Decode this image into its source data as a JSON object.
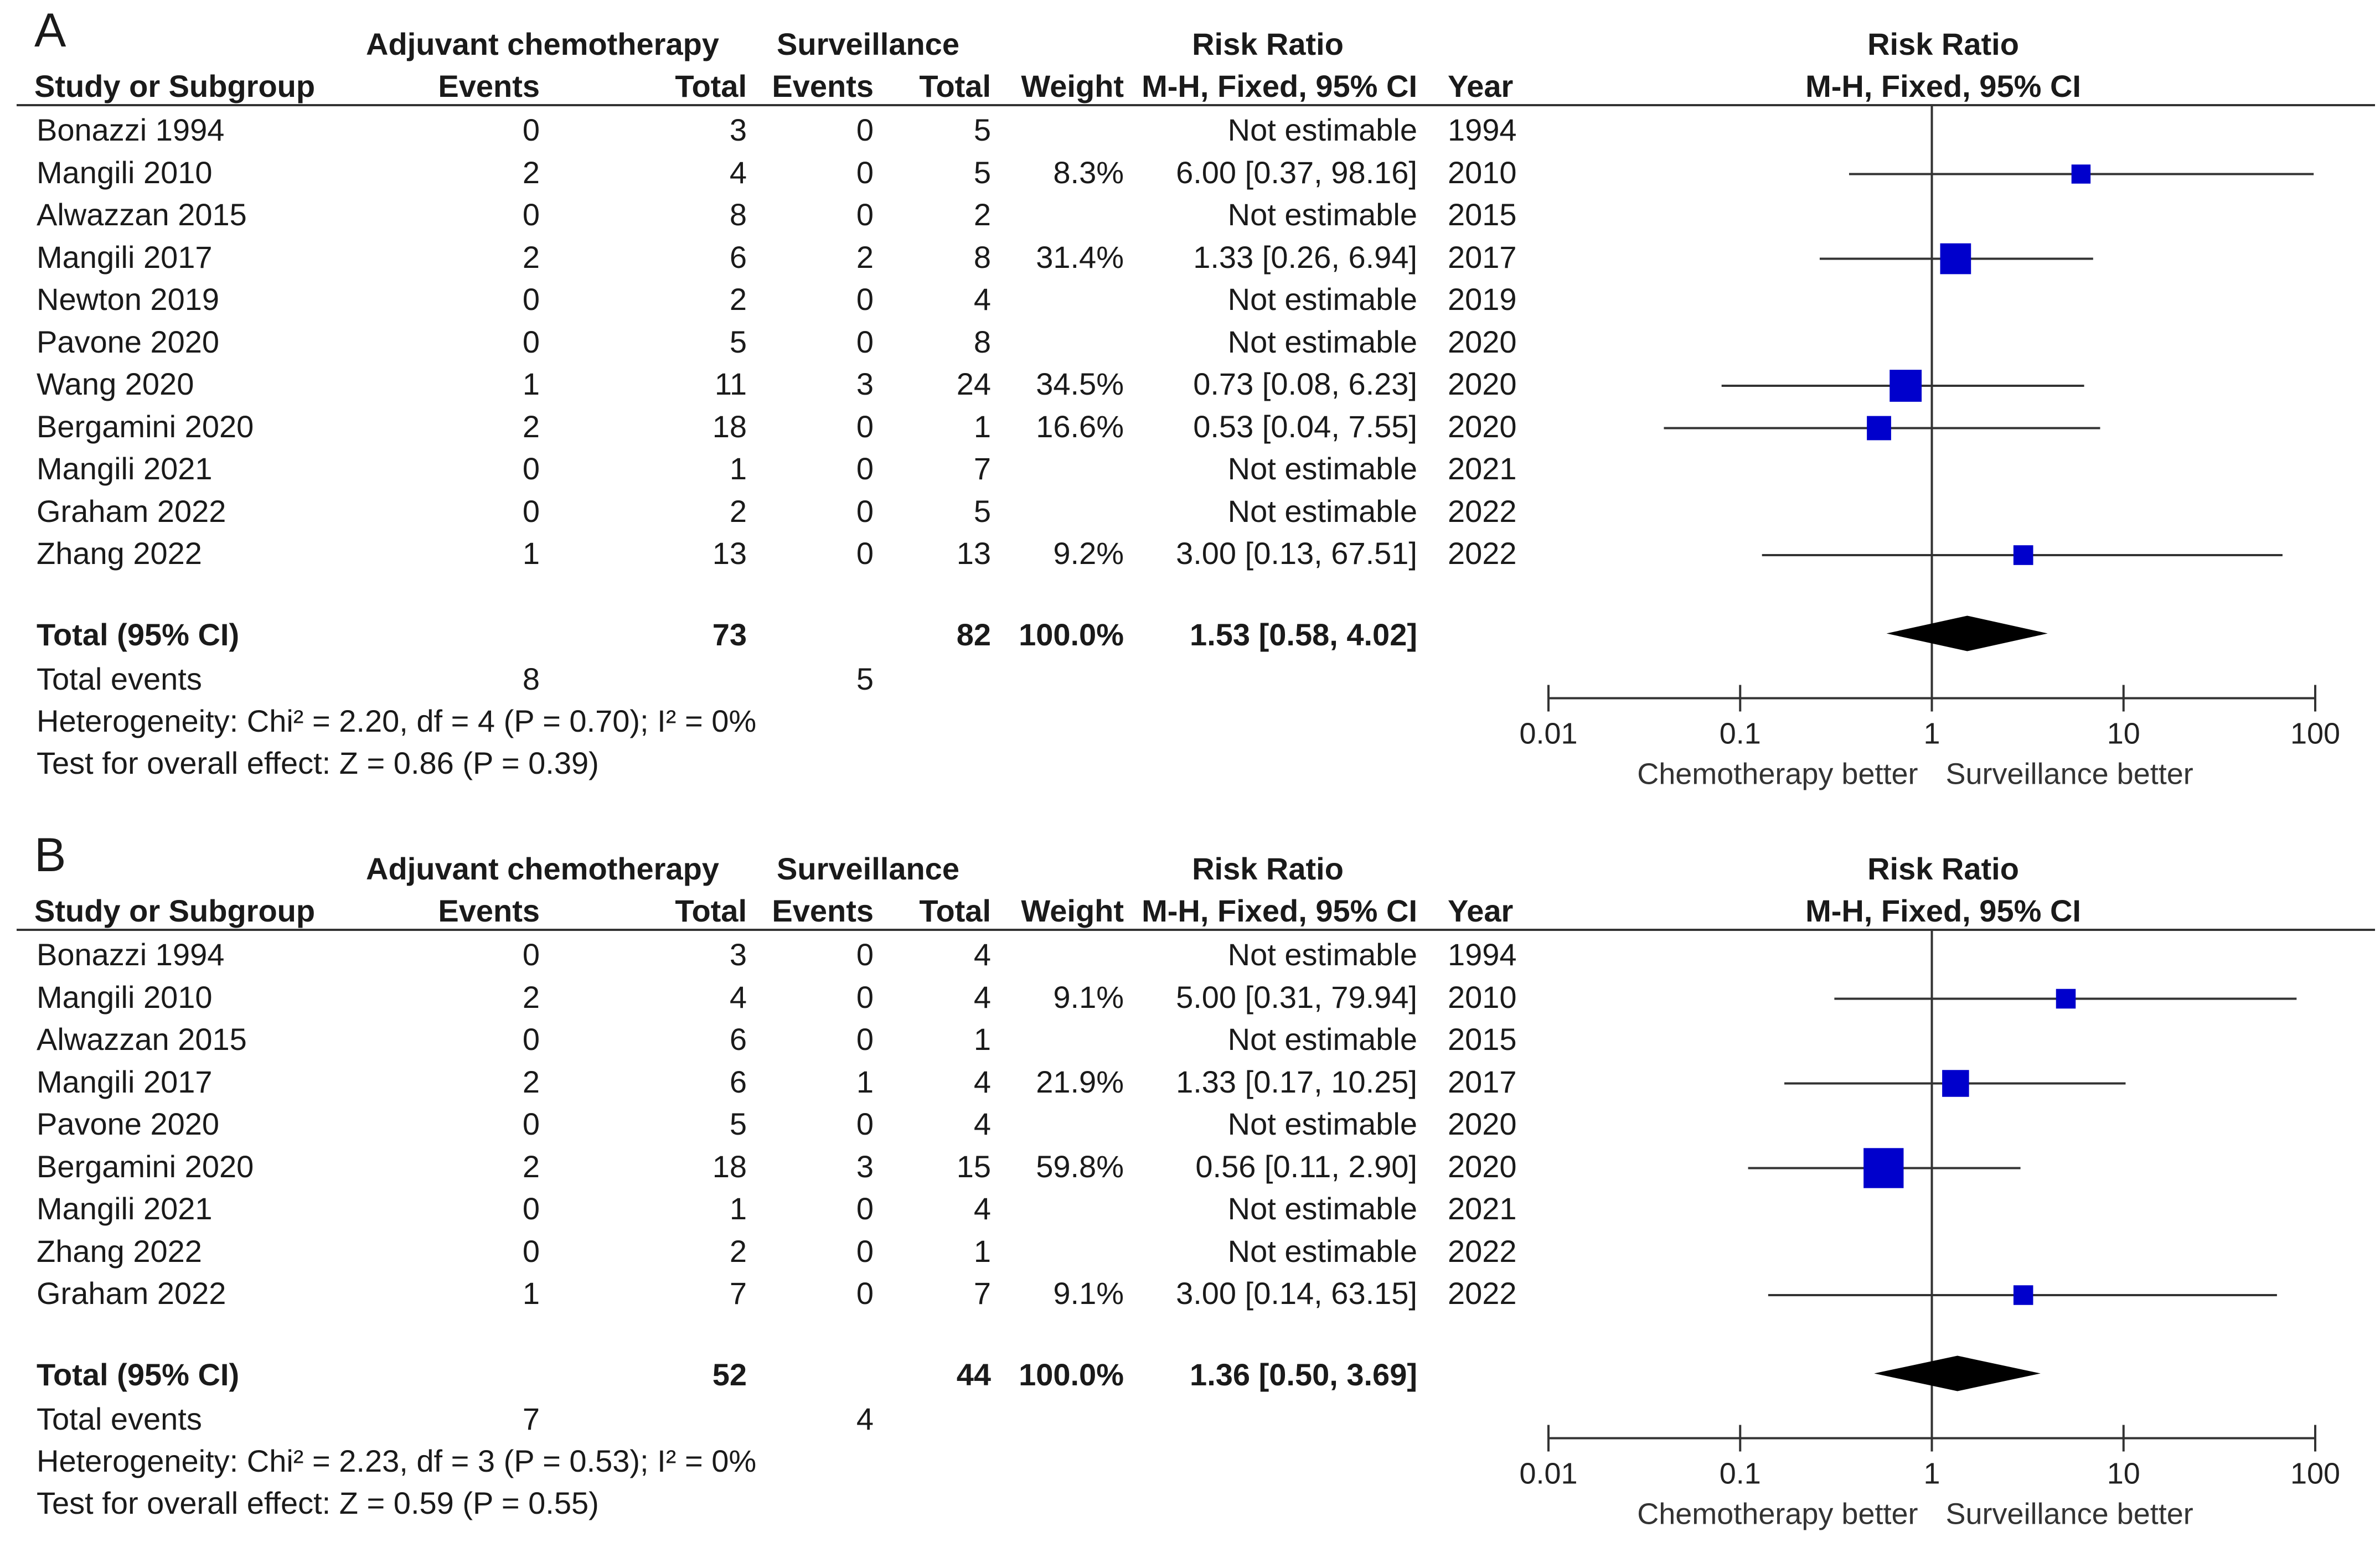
{
  "headers": {
    "group1": "Adjuvant chemotherapy",
    "group2": "Surveillance",
    "risk_ratio": "Risk Ratio",
    "study": "Study or Subgroup",
    "events": "Events",
    "total": "Total",
    "weight": "Weight",
    "method": "M-H, Fixed, 95% CI",
    "year": "Year"
  },
  "axis": {
    "ticks": [
      "0.01",
      "0.1",
      "1",
      "10",
      "100"
    ],
    "left_label": "Chemotherapy better",
    "right_label": "Surveillance better"
  },
  "colors": {
    "marker": "#0000CC",
    "diamond": "#000000",
    "line": "#333333"
  },
  "panels": [
    {
      "letter": "A",
      "rows": [
        {
          "study": "Bonazzi 1994",
          "e1": "0",
          "t1": "3",
          "e2": "0",
          "t2": "5",
          "weight": "",
          "ci": "Not estimable",
          "year": "1994"
        },
        {
          "study": "Mangili 2010",
          "e1": "2",
          "t1": "4",
          "e2": "0",
          "t2": "5",
          "weight": "8.3%",
          "ci": "6.00 [0.37, 98.16]",
          "year": "2010"
        },
        {
          "study": "Alwazzan 2015",
          "e1": "0",
          "t1": "8",
          "e2": "0",
          "t2": "2",
          "weight": "",
          "ci": "Not estimable",
          "year": "2015"
        },
        {
          "study": "Mangili 2017",
          "e1": "2",
          "t1": "6",
          "e2": "2",
          "t2": "8",
          "weight": "31.4%",
          "ci": "1.33 [0.26, 6.94]",
          "year": "2017"
        },
        {
          "study": "Newton 2019",
          "e1": "0",
          "t1": "2",
          "e2": "0",
          "t2": "4",
          "weight": "",
          "ci": "Not estimable",
          "year": "2019"
        },
        {
          "study": "Pavone 2020",
          "e1": "0",
          "t1": "5",
          "e2": "0",
          "t2": "8",
          "weight": "",
          "ci": "Not estimable",
          "year": "2020"
        },
        {
          "study": "Wang 2020",
          "e1": "1",
          "t1": "11",
          "e2": "3",
          "t2": "24",
          "weight": "34.5%",
          "ci": "0.73 [0.08, 6.23]",
          "year": "2020"
        },
        {
          "study": "Bergamini 2020",
          "e1": "2",
          "t1": "18",
          "e2": "0",
          "t2": "1",
          "weight": "16.6%",
          "ci": "0.53 [0.04, 7.55]",
          "year": "2020"
        },
        {
          "study": "Mangili 2021",
          "e1": "0",
          "t1": "1",
          "e2": "0",
          "t2": "7",
          "weight": "",
          "ci": "Not estimable",
          "year": "2021"
        },
        {
          "study": "Graham 2022",
          "e1": "0",
          "t1": "2",
          "e2": "0",
          "t2": "5",
          "weight": "",
          "ci": "Not estimable",
          "year": "2022"
        },
        {
          "study": "Zhang 2022",
          "e1": "1",
          "t1": "13",
          "e2": "0",
          "t2": "13",
          "weight": "9.2%",
          "ci": "3.00 [0.13, 67.51]",
          "year": "2022"
        }
      ],
      "total": {
        "label": "Total (95% CI)",
        "t1": "73",
        "t2": "82",
        "weight": "100.0%",
        "ci": "1.53 [0.58, 4.02]"
      },
      "total_events": {
        "label": "Total events",
        "e1": "8",
        "e2": "5"
      },
      "heterogeneity": "Heterogeneity: Chi² = 2.20, df = 4 (P = 0.70); I² = 0%",
      "overall_effect": "Test for overall effect: Z = 0.86 (P = 0.39)"
    },
    {
      "letter": "B",
      "rows": [
        {
          "study": "Bonazzi 1994",
          "e1": "0",
          "t1": "3",
          "e2": "0",
          "t2": "4",
          "weight": "",
          "ci": "Not estimable",
          "year": "1994"
        },
        {
          "study": "Mangili 2010",
          "e1": "2",
          "t1": "4",
          "e2": "0",
          "t2": "4",
          "weight": "9.1%",
          "ci": "5.00 [0.31, 79.94]",
          "year": "2010"
        },
        {
          "study": "Alwazzan 2015",
          "e1": "0",
          "t1": "6",
          "e2": "0",
          "t2": "1",
          "weight": "",
          "ci": "Not estimable",
          "year": "2015"
        },
        {
          "study": "Mangili 2017",
          "e1": "2",
          "t1": "6",
          "e2": "1",
          "t2": "4",
          "weight": "21.9%",
          "ci": "1.33 [0.17, 10.25]",
          "year": "2017"
        },
        {
          "study": "Pavone 2020",
          "e1": "0",
          "t1": "5",
          "e2": "0",
          "t2": "4",
          "weight": "",
          "ci": "Not estimable",
          "year": "2020"
        },
        {
          "study": "Bergamini 2020",
          "e1": "2",
          "t1": "18",
          "e2": "3",
          "t2": "15",
          "weight": "59.8%",
          "ci": "0.56 [0.11, 2.90]",
          "year": "2020"
        },
        {
          "study": "Mangili 2021",
          "e1": "0",
          "t1": "1",
          "e2": "0",
          "t2": "4",
          "weight": "",
          "ci": "Not estimable",
          "year": "2021"
        },
        {
          "study": "Zhang 2022",
          "e1": "0",
          "t1": "2",
          "e2": "0",
          "t2": "1",
          "weight": "",
          "ci": "Not estimable",
          "year": "2022"
        },
        {
          "study": "Graham 2022",
          "e1": "1",
          "t1": "7",
          "e2": "0",
          "t2": "7",
          "weight": "9.1%",
          "ci": "3.00 [0.14, 63.15]",
          "year": "2022"
        }
      ],
      "total": {
        "label": "Total (95% CI)",
        "t1": "52",
        "t2": "44",
        "weight": "100.0%",
        "ci": "1.36 [0.50, 3.69]"
      },
      "total_events": {
        "label": "Total events",
        "e1": "7",
        "e2": "4"
      },
      "heterogeneity": "Heterogeneity: Chi² = 2.23, df = 3 (P = 0.53); I² = 0%",
      "overall_effect": "Test for overall effect: Z = 0.59 (P = 0.55)"
    }
  ],
  "chart_data": [
    {
      "type": "forest",
      "scale": "log",
      "xlim": [
        0.01,
        100
      ],
      "x_ticks": [
        0.01,
        0.1,
        1,
        10,
        100
      ],
      "studies": [
        {
          "name": "Mangili 2010",
          "rr": 6.0,
          "lo": 0.37,
          "hi": 98.16,
          "weight": 8.3
        },
        {
          "name": "Mangili 2017",
          "rr": 1.33,
          "lo": 0.26,
          "hi": 6.94,
          "weight": 31.4
        },
        {
          "name": "Wang 2020",
          "rr": 0.73,
          "lo": 0.08,
          "hi": 6.23,
          "weight": 34.5
        },
        {
          "name": "Bergamini 2020",
          "rr": 0.53,
          "lo": 0.04,
          "hi": 7.55,
          "weight": 16.6
        },
        {
          "name": "Zhang 2022",
          "rr": 3.0,
          "lo": 0.13,
          "hi": 67.51,
          "weight": 9.2
        }
      ],
      "pooled": {
        "rr": 1.53,
        "lo": 0.58,
        "hi": 4.02
      }
    },
    {
      "type": "forest",
      "scale": "log",
      "xlim": [
        0.01,
        100
      ],
      "x_ticks": [
        0.01,
        0.1,
        1,
        10,
        100
      ],
      "studies": [
        {
          "name": "Mangili 2010",
          "rr": 5.0,
          "lo": 0.31,
          "hi": 79.94,
          "weight": 9.1
        },
        {
          "name": "Mangili 2017",
          "rr": 1.33,
          "lo": 0.17,
          "hi": 10.25,
          "weight": 21.9
        },
        {
          "name": "Bergamini 2020",
          "rr": 0.56,
          "lo": 0.11,
          "hi": 2.9,
          "weight": 59.8
        },
        {
          "name": "Graham 2022",
          "rr": 3.0,
          "lo": 0.14,
          "hi": 63.15,
          "weight": 9.1
        }
      ],
      "pooled": {
        "rr": 1.36,
        "lo": 0.5,
        "hi": 3.69
      }
    }
  ]
}
